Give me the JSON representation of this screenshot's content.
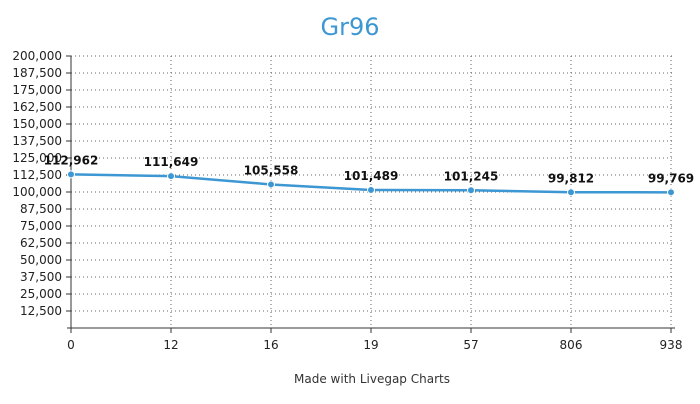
{
  "chart_data": {
    "type": "line",
    "title": "Gr96",
    "categories": [
      "0",
      "12",
      "16",
      "19",
      "57",
      "806",
      "938"
    ],
    "series": [
      {
        "values": [
          112962,
          111649,
          105558,
          101489,
          101245,
          99812,
          99769
        ],
        "color": "#3d97d3"
      }
    ],
    "data_labels": [
      "112,962",
      "111,649",
      "105,558",
      "101,489",
      "101,245",
      "99,812",
      "99,769"
    ],
    "y_ticks": [
      "12,500",
      "25,000",
      "37,500",
      "50,000",
      "62,500",
      "75,000",
      "87,500",
      "100,000",
      "112,500",
      "125,000",
      "137,500",
      "150,000",
      "162,500",
      "175,000",
      "187,500",
      "200,000"
    ],
    "ylim": [
      0,
      200000
    ],
    "grid": true,
    "xlabel": "",
    "ylabel": ""
  },
  "footer": {
    "caption": "Made with Livegap Charts"
  }
}
